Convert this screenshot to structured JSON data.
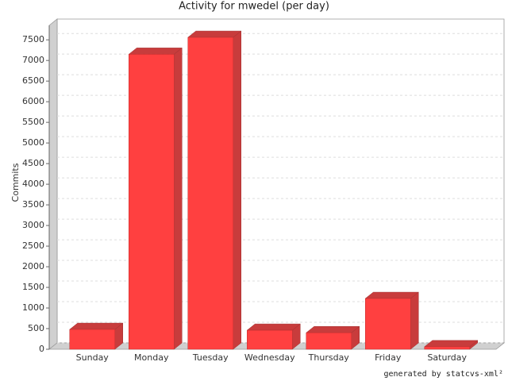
{
  "chart_data": {
    "type": "bar3d",
    "title": "Activity for mwedel (per day)",
    "y_label": "Commits",
    "categories": [
      "Sunday",
      "Monday",
      "Tuesday",
      "Wednesday",
      "Thursday",
      "Friday",
      "Saturday"
    ],
    "values": [
      480,
      7150,
      7560,
      460,
      400,
      1230,
      60
    ],
    "color": "#ff4040",
    "shade_color": "#c83c3c",
    "ylim": [
      0,
      7850
    ],
    "yticks": [
      0,
      500,
      1000,
      1500,
      2000,
      2500,
      3000,
      3500,
      4000,
      4500,
      5000,
      5500,
      6000,
      6500,
      7000,
      7500
    ],
    "grid": true,
    "footer": "generated by statcvs-xml²"
  }
}
